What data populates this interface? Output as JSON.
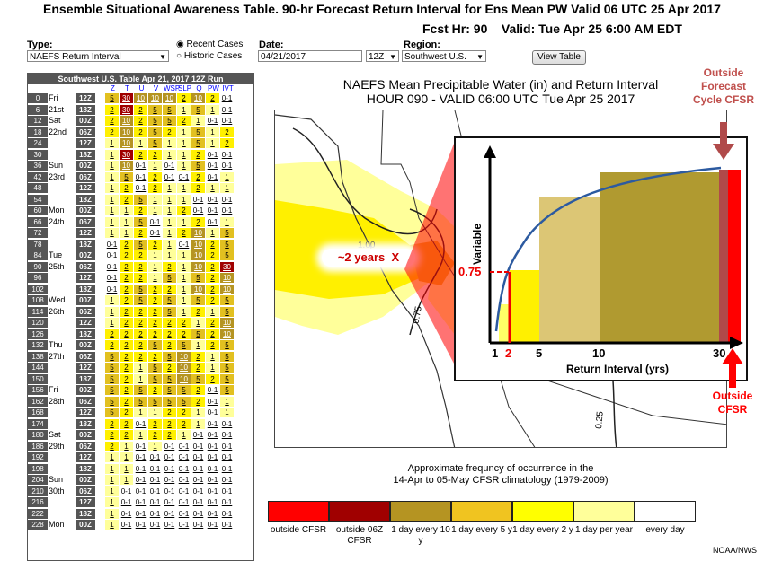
{
  "title": "Ensemble Situational Awareness Table. 90-hr Forecast  Return Interval for Ens Mean PW Valid 06 UTC 25 Apr 2017",
  "fcst_line": "Fcst Hr: 90    Valid: Tue Apr 25 6:00 AM EDT",
  "controls": {
    "type_label": "Type:",
    "type_value": "NAEFS Return Interval",
    "radio_recent": "Recent Cases",
    "radio_historic": "Historic Cases",
    "date_label": "Date:",
    "date_value": "04/21/2017",
    "run_value": "12Z",
    "region_label": "Region:",
    "region_value": "Southwest U.S.",
    "view_button": "View Table"
  },
  "table": {
    "header": "Southwest U.S. Table  Apr 21, 2017 12Z Run",
    "columns": [
      "Z",
      "T",
      "U",
      "V",
      "WSP",
      "SLP",
      "Q",
      "PW",
      "IVT"
    ],
    "rows": [
      {
        "fh": "0",
        "day": "Fri",
        "z": "12Z",
        "v": [
          "5",
          "30",
          "10",
          "10",
          "10",
          "2",
          "10",
          "2",
          "0-1"
        ]
      },
      {
        "fh": "6",
        "day": "21st",
        "z": "18Z",
        "v": [
          "2",
          "30",
          "2",
          "5",
          "5",
          "1",
          "5",
          "1",
          "0-1"
        ]
      },
      {
        "fh": "12",
        "day": "Sat",
        "z": "00Z",
        "v": [
          "2",
          "10",
          "2",
          "5",
          "5",
          "2",
          "1",
          "0-1",
          "0-1"
        ]
      },
      {
        "fh": "18",
        "day": "22nd",
        "z": "06Z",
        "v": [
          "2",
          "10",
          "2",
          "5",
          "2",
          "1",
          "5",
          "1",
          "2"
        ]
      },
      {
        "fh": "24",
        "day": "",
        "z": "12Z",
        "v": [
          "1",
          "10",
          "1",
          "5",
          "1",
          "1",
          "5",
          "1",
          "2"
        ]
      },
      {
        "fh": "30",
        "day": "",
        "z": "18Z",
        "v": [
          "1",
          "30",
          "2",
          "2",
          "1",
          "1",
          "2",
          "0-1",
          "0-1"
        ]
      },
      {
        "fh": "36",
        "day": "Sun",
        "z": "00Z",
        "v": [
          "1",
          "10",
          "0-1",
          "1",
          "0-1",
          "1",
          "5",
          "0-1",
          "0-1"
        ]
      },
      {
        "fh": "42",
        "day": "23rd",
        "z": "06Z",
        "v": [
          "1",
          "5",
          "0-1",
          "2",
          "0-1",
          "0-1",
          "2",
          "0-1",
          "1"
        ]
      },
      {
        "fh": "48",
        "day": "",
        "z": "12Z",
        "v": [
          "1",
          "2",
          "0-1",
          "2",
          "1",
          "1",
          "2",
          "1",
          "1"
        ]
      },
      {
        "fh": "54",
        "day": "",
        "z": "18Z",
        "v": [
          "1",
          "2",
          "5",
          "1",
          "1",
          "1",
          "0-1",
          "0-1",
          "0-1"
        ]
      },
      {
        "fh": "60",
        "day": "Mon",
        "z": "00Z",
        "v": [
          "1",
          "1",
          "2",
          "1",
          "1",
          "2",
          "0-1",
          "0-1",
          "0-1"
        ]
      },
      {
        "fh": "66",
        "day": "24th",
        "z": "06Z",
        "v": [
          "1",
          "1",
          "5",
          "0-1",
          "1",
          "1",
          "2",
          "0-1",
          "1"
        ]
      },
      {
        "fh": "72",
        "day": "",
        "z": "12Z",
        "v": [
          "1",
          "1",
          "2",
          "0-1",
          "1",
          "2",
          "10",
          "1",
          "5"
        ]
      },
      {
        "fh": "78",
        "day": "",
        "z": "18Z",
        "v": [
          "0-1",
          "2",
          "5",
          "2",
          "1",
          "0-1",
          "10",
          "2",
          "5"
        ]
      },
      {
        "fh": "84",
        "day": "Tue",
        "z": "00Z",
        "v": [
          "0-1",
          "2",
          "2",
          "1",
          "1",
          "1",
          "10",
          "2",
          "5"
        ]
      },
      {
        "fh": "90",
        "day": "25th",
        "z": "06Z",
        "v": [
          "0-1",
          "2",
          "2",
          "1",
          "2",
          "1",
          "10",
          "2",
          "30"
        ]
      },
      {
        "fh": "96",
        "day": "",
        "z": "12Z",
        "v": [
          "0-1",
          "2",
          "2",
          "1",
          "5",
          "1",
          "5",
          "2",
          "10"
        ]
      },
      {
        "fh": "102",
        "day": "",
        "z": "18Z",
        "v": [
          "0-1",
          "2",
          "5",
          "2",
          "2",
          "1",
          "10",
          "2",
          "10"
        ]
      },
      {
        "fh": "108",
        "day": "Wed",
        "z": "00Z",
        "v": [
          "1",
          "2",
          "5",
          "2",
          "5",
          "1",
          "5",
          "2",
          "5"
        ]
      },
      {
        "fh": "114",
        "day": "26th",
        "z": "06Z",
        "v": [
          "1",
          "2",
          "2",
          "2",
          "5",
          "1",
          "2",
          "1",
          "5"
        ]
      },
      {
        "fh": "120",
        "day": "",
        "z": "12Z",
        "v": [
          "1",
          "2",
          "2",
          "2",
          "2",
          "2",
          "1",
          "2",
          "10"
        ]
      },
      {
        "fh": "126",
        "day": "",
        "z": "18Z",
        "v": [
          "2",
          "2",
          "2",
          "2",
          "2",
          "2",
          "5",
          "2",
          "10"
        ]
      },
      {
        "fh": "132",
        "day": "Thu",
        "z": "00Z",
        "v": [
          "2",
          "2",
          "2",
          "5",
          "2",
          "5",
          "1",
          "2",
          "5"
        ]
      },
      {
        "fh": "138",
        "day": "27th",
        "z": "06Z",
        "v": [
          "5",
          "2",
          "2",
          "2",
          "5",
          "10",
          "2",
          "1",
          "5"
        ]
      },
      {
        "fh": "144",
        "day": "",
        "z": "12Z",
        "v": [
          "5",
          "2",
          "1",
          "5",
          "2",
          "10",
          "2",
          "1",
          "5"
        ]
      },
      {
        "fh": "150",
        "day": "",
        "z": "18Z",
        "v": [
          "5",
          "2",
          "1",
          "5",
          "5",
          "10",
          "5",
          "2",
          "5"
        ]
      },
      {
        "fh": "156",
        "day": "Fri",
        "z": "00Z",
        "v": [
          "5",
          "2",
          "5",
          "2",
          "5",
          "5",
          "2",
          "0-1",
          "5"
        ]
      },
      {
        "fh": "162",
        "day": "28th",
        "z": "06Z",
        "v": [
          "5",
          "2",
          "5",
          "5",
          "5",
          "5",
          "2",
          "0-1",
          "1"
        ]
      },
      {
        "fh": "168",
        "day": "",
        "z": "12Z",
        "v": [
          "5",
          "2",
          "1",
          "1",
          "2",
          "2",
          "1",
          "0-1",
          "1"
        ]
      },
      {
        "fh": "174",
        "day": "",
        "z": "18Z",
        "v": [
          "2",
          "2",
          "0-1",
          "2",
          "2",
          "2",
          "1",
          "0-1",
          "0-1"
        ]
      },
      {
        "fh": "180",
        "day": "Sat",
        "z": "00Z",
        "v": [
          "2",
          "2",
          "1",
          "2",
          "2",
          "1",
          "0-1",
          "0-1",
          "0-1"
        ]
      },
      {
        "fh": "186",
        "day": "29th",
        "z": "06Z",
        "v": [
          "2",
          "1",
          "0-1",
          "1",
          "0-1",
          "0-1",
          "0-1",
          "0-1",
          "0-1"
        ]
      },
      {
        "fh": "192",
        "day": "",
        "z": "12Z",
        "v": [
          "1",
          "1",
          "0-1",
          "0-1",
          "0-1",
          "0-1",
          "0-1",
          "0-1",
          "0-1"
        ]
      },
      {
        "fh": "198",
        "day": "",
        "z": "18Z",
        "v": [
          "1",
          "1",
          "0-1",
          "0-1",
          "0-1",
          "0-1",
          "0-1",
          "0-1",
          "0-1"
        ]
      },
      {
        "fh": "204",
        "day": "Sun",
        "z": "00Z",
        "v": [
          "1",
          "1",
          "0-1",
          "0-1",
          "0-1",
          "0-1",
          "0-1",
          "0-1",
          "0-1"
        ]
      },
      {
        "fh": "210",
        "day": "30th",
        "z": "06Z",
        "v": [
          "1",
          "0-1",
          "0-1",
          "0-1",
          "0-1",
          "0-1",
          "0-1",
          "0-1",
          "0-1"
        ]
      },
      {
        "fh": "216",
        "day": "",
        "z": "12Z",
        "v": [
          "1",
          "0-1",
          "0-1",
          "0-1",
          "0-1",
          "0-1",
          "0-1",
          "0-1",
          "0-1"
        ]
      },
      {
        "fh": "222",
        "day": "",
        "z": "18Z",
        "v": [
          "1",
          "0-1",
          "0-1",
          "0-1",
          "0-1",
          "0-1",
          "0-1",
          "0-1",
          "0-1"
        ]
      },
      {
        "fh": "228",
        "day": "Mon",
        "z": "00Z",
        "v": [
          "1",
          "0-1",
          "0-1",
          "0-1",
          "0-1",
          "0-1",
          "0-1",
          "0-1",
          "0-1"
        ]
      }
    ]
  },
  "cell_colors": {
    "30": "#a00000",
    "10": "#b59422",
    "5": "#e2c020",
    "2": "#fff000",
    "1": "#ffff9a",
    "0-1": "#ffffff"
  },
  "map": {
    "title_line1": "NAEFS Mean Precipitable Water (in) and Return Interval",
    "title_line2": "HOUR 090 - VALID 06:00 UTC Tue Apr 25 2017",
    "contour_1": "1.00",
    "contour_2": "0.75",
    "contour_3": "0.25",
    "annotation": "~2 years  X",
    "note_line1": "Approximate frequncy of occurrence in the",
    "note_line2": "14-Apr to 05-May CFSR climatology (1979-2009)"
  },
  "inset": {
    "y_label": "Variable",
    "x_label": "Return Interval (yrs)",
    "y_marker": "0.75",
    "x_ticks": [
      "1",
      "2",
      "5",
      "10",
      "30"
    ]
  },
  "callouts": {
    "top": "Outside Forecast Cycle CFSR",
    "bottom": "Outside CFSR"
  },
  "legend": [
    {
      "label": "outside CFSR",
      "color": "#ff0000"
    },
    {
      "label": "outside 06Z CFSR",
      "color": "#a00000"
    },
    {
      "label": "1 day every 10 y",
      "color": "#b59422"
    },
    {
      "label": "1 day every 5 y",
      "color": "#f0c420"
    },
    {
      "label": "1 day every 2 y",
      "color": "#ffff00"
    },
    {
      "label": "1 day per year",
      "color": "#ffff9a"
    },
    {
      "label": "every day",
      "color": "#ffffff"
    }
  ],
  "credit": "NOAA/NWS"
}
